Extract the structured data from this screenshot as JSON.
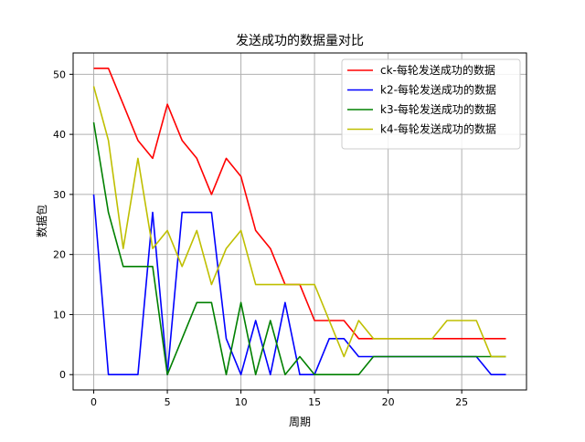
{
  "chart_data": {
    "type": "line",
    "title": "发送成功的数据量对比",
    "xlabel": "周期",
    "ylabel": "数据包",
    "xlim": [
      -1.4,
      29.4
    ],
    "ylim": [
      -2.55,
      53.55
    ],
    "xticks": [
      0,
      5,
      10,
      15,
      20,
      25
    ],
    "yticks": [
      0,
      10,
      20,
      30,
      40,
      50
    ],
    "grid": true,
    "legend_position": "top-right",
    "x": [
      0,
      1,
      2,
      3,
      4,
      5,
      6,
      7,
      8,
      9,
      10,
      11,
      12,
      13,
      14,
      15,
      16,
      17,
      18,
      19,
      20,
      21,
      22,
      23,
      24,
      25,
      26,
      27,
      28
    ],
    "series": [
      {
        "name": "ck-每轮发送成功的数据",
        "color": "#ff0000",
        "values": [
          51,
          51,
          45,
          39,
          36,
          45,
          39,
          36,
          30,
          36,
          33,
          24,
          21,
          15,
          15,
          9,
          9,
          9,
          6,
          6,
          6,
          6,
          6,
          6,
          6,
          6,
          6,
          6,
          6
        ]
      },
      {
        "name": "k2-每轮发送成功的数据",
        "color": "#0000ff",
        "values": [
          30,
          0,
          0,
          0,
          27,
          0,
          27,
          27,
          27,
          6,
          0,
          9,
          0,
          12,
          0,
          0,
          6,
          6,
          3,
          3,
          3,
          3,
          3,
          3,
          3,
          3,
          3,
          0,
          0
        ]
      },
      {
        "name": "k3-每轮发送成功的数据",
        "color": "#008000",
        "values": [
          42,
          27,
          18,
          18,
          18,
          0,
          6,
          12,
          12,
          0,
          12,
          0,
          9,
          0,
          3,
          0,
          0,
          0,
          0,
          3,
          3,
          3,
          3,
          3,
          3,
          3,
          3,
          3,
          3
        ]
      },
      {
        "name": "k4-每轮发送成功的数据",
        "color": "#bfbf00",
        "values": [
          48,
          39,
          21,
          36,
          21,
          24,
          18,
          24,
          15,
          21,
          24,
          15,
          15,
          15,
          15,
          15,
          9,
          3,
          9,
          6,
          6,
          6,
          6,
          6,
          9,
          9,
          9,
          3,
          3
        ]
      }
    ]
  }
}
